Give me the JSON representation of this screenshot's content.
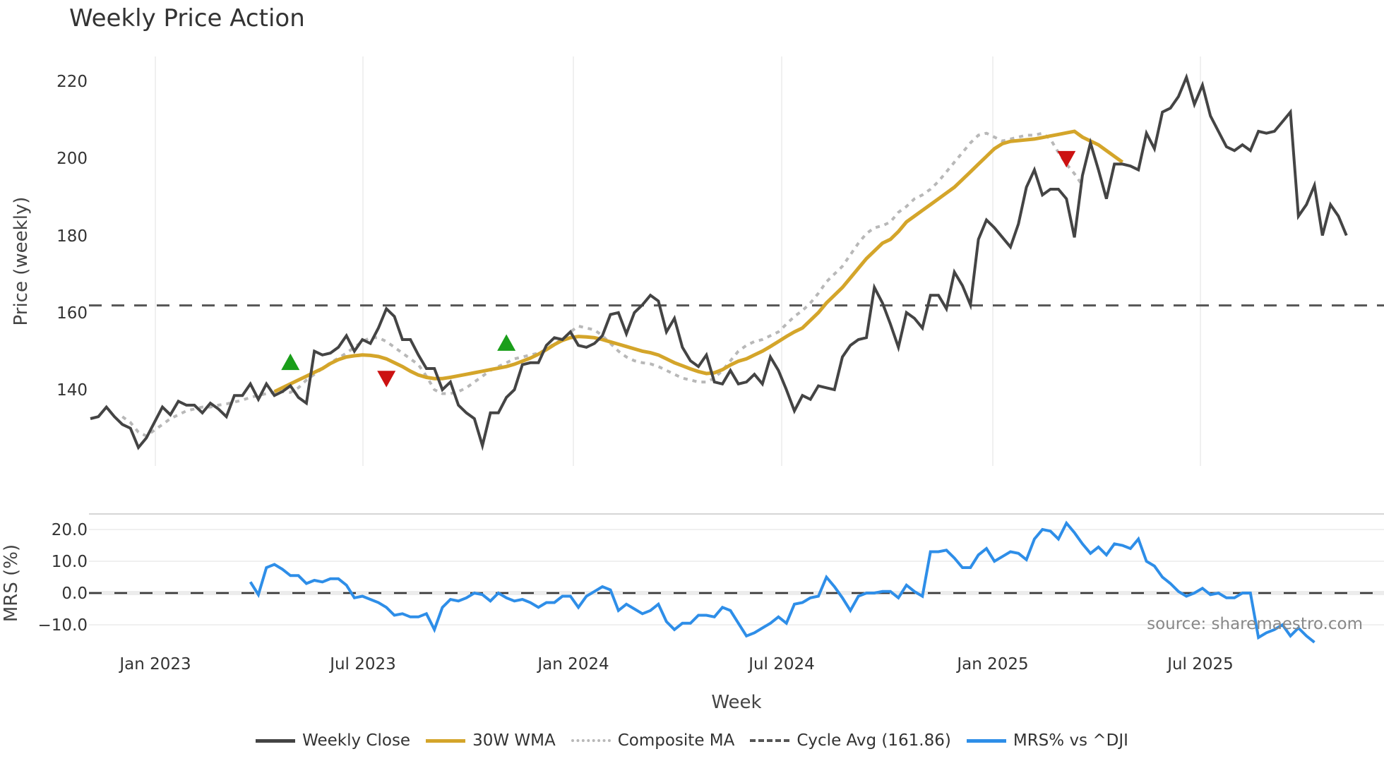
{
  "title": "Weekly Price Action",
  "source_text": "source: sharemaestro.com",
  "chart_data": [
    {
      "type": "line",
      "panel": "price",
      "title": "Weekly Price Action",
      "xlabel": "Week",
      "ylabel": "Price (weekly)",
      "yticks": [
        140,
        160,
        180,
        200,
        220
      ],
      "ylim": [
        121,
        228
      ],
      "xticks": [
        "Jan 2023",
        "Jul 2023",
        "Jan 2024",
        "Jul 2024",
        "Jan 2025",
        "Jul 2025"
      ],
      "grid": true,
      "cycle_avg": 161.86,
      "series": [
        {
          "name": "Weekly Close",
          "color": "#444444",
          "start_index": 0,
          "values": [
            132.5,
            133,
            135.5,
            133,
            131,
            130,
            125,
            127.5,
            131.5,
            135.5,
            133.5,
            137,
            136,
            136,
            134,
            136.5,
            135,
            133,
            138.5,
            138.5,
            141.5,
            137.5,
            141.5,
            138.5,
            139.5,
            141,
            138,
            136.5,
            150,
            149,
            149.5,
            151,
            154,
            150,
            153,
            152,
            156,
            161,
            159,
            153,
            153,
            149,
            145.5,
            145.5,
            140,
            142,
            136,
            134,
            132.5,
            125.5,
            134,
            134,
            138,
            140,
            146.5,
            147,
            147,
            151.5,
            153.5,
            153,
            155,
            151.5,
            151,
            152,
            154,
            159.5,
            160,
            154.5,
            160,
            162,
            164.5,
            163,
            155,
            158.5,
            151,
            147.5,
            146,
            149,
            142,
            141.5,
            145,
            141.5,
            142,
            144,
            141.5,
            148.5,
            145,
            140,
            134.5,
            138.5,
            137.5,
            141,
            140.5,
            140,
            148.5,
            151.5,
            153,
            153.5,
            166.5,
            162.5,
            157,
            151,
            160,
            158.5,
            156,
            164.5,
            164.5,
            161,
            170.5,
            167,
            162,
            179,
            184,
            182,
            179.5,
            177,
            183,
            192.5,
            197,
            190.5,
            192,
            192,
            189.5,
            179.5,
            195.5,
            204,
            197,
            189.5,
            198.5,
            198.5,
            198,
            197,
            206.5,
            202.5,
            212,
            213,
            216,
            221,
            214,
            219,
            211,
            207,
            203,
            202,
            203.5,
            202,
            207,
            206.5,
            207,
            209.5,
            212,
            185,
            188,
            193,
            180,
            188,
            185,
            180
          ]
        },
        {
          "name": "30W WMA",
          "color": "#d4a52a",
          "start_index": 23,
          "values": [
            139.5,
            140.5,
            141.5,
            142.5,
            143.5,
            144.5,
            145.5,
            146.8,
            147.8,
            148.5,
            148.8,
            149,
            148.9,
            148.6,
            148,
            147,
            146,
            144.8,
            143.8,
            143.2,
            142.9,
            142.9,
            143.2,
            143.6,
            144,
            144.4,
            144.8,
            145.2,
            145.6,
            146,
            146.6,
            147.4,
            148.2,
            149.2,
            150.4,
            151.7,
            152.8,
            153.5,
            153.8,
            153.7,
            153.5,
            153,
            152.4,
            151.8,
            151.2,
            150.6,
            150,
            149.6,
            149,
            148,
            147,
            146.2,
            145.4,
            144.7,
            144.2,
            144.4,
            145.2,
            146.4,
            147.4,
            148,
            149,
            150,
            151.2,
            152.5,
            153.8,
            155,
            156,
            158,
            160,
            162.5,
            164.5,
            166.5,
            169,
            171.5,
            174,
            176,
            178,
            179,
            181,
            183.5,
            185,
            186.5,
            188,
            189.5,
            191,
            192.5,
            194.5,
            196.5,
            198.5,
            200.5,
            202.5,
            203.8,
            204.4,
            204.6,
            204.8,
            205,
            205.4,
            205.8,
            206.2,
            206.6,
            207,
            205.5,
            204.5,
            203.5,
            202,
            200.5,
            199
          ]
        },
        {
          "name": "Composite MA",
          "color": "#b8b8b8",
          "start_index": 4,
          "values": [
            133,
            131.5,
            129,
            128,
            129.5,
            131,
            132.5,
            133.5,
            134.5,
            135,
            135.5,
            135.5,
            136,
            136.3,
            136.8,
            137.3,
            138,
            138.5,
            139,
            139.3,
            139.5,
            139.3,
            140.5,
            142.5,
            144,
            145.5,
            147,
            148.2,
            149.5,
            151,
            152.5,
            153.5,
            153.5,
            152.5,
            151,
            149.5,
            148,
            146.5,
            143.5,
            140,
            139,
            139,
            139.5,
            140.5,
            142,
            143.5,
            145,
            146,
            147,
            148,
            148.5,
            149,
            149.5,
            150.5,
            152,
            153,
            155,
            156.5,
            156,
            155.5,
            154,
            152,
            150,
            148.5,
            147.5,
            147,
            146.7,
            146,
            145,
            144,
            143,
            142.5,
            142,
            142,
            143,
            145,
            147.5,
            150,
            151.5,
            152.5,
            153,
            154,
            155,
            157,
            159,
            160.5,
            162.5,
            165,
            168,
            170,
            172,
            175,
            178,
            180.5,
            182,
            182.5,
            183.5,
            186,
            187.5,
            189.5,
            190.5,
            192,
            194,
            196.5,
            199,
            201.5,
            204,
            206,
            206.5,
            205.5,
            204.5,
            205,
            205.5,
            206,
            206,
            206.5,
            205,
            201.5,
            198.5,
            196,
            193
          ]
        }
      ],
      "markers": [
        {
          "type": "buy",
          "shape": "triangle-up",
          "color": "#1a9e1a",
          "index": 25,
          "value": 147
        },
        {
          "type": "sell",
          "shape": "triangle-down",
          "color": "#cc1111",
          "index": 37,
          "value": 143
        },
        {
          "type": "buy",
          "shape": "triangle-up",
          "color": "#1a9e1a",
          "index": 52,
          "value": 152
        },
        {
          "type": "sell",
          "shape": "triangle-down",
          "color": "#cc1111",
          "index": 122,
          "value": 200
        }
      ]
    },
    {
      "type": "line",
      "panel": "mrs",
      "ylabel": "MRS (%)",
      "yticks": [
        -10.0,
        0.0,
        10.0,
        20.0
      ],
      "ylim": [
        -19,
        25
      ],
      "zero_line": true,
      "series": [
        {
          "name": "MRS% vs ^DJI",
          "color": "#2e8ee8",
          "start_index": 20,
          "values": [
            3.5,
            -0.5,
            8,
            9,
            7.5,
            5.5,
            5.5,
            3,
            4,
            3.5,
            4.5,
            4.5,
            2.5,
            -1.5,
            -1,
            -2,
            -3,
            -4.5,
            -7,
            -6.5,
            -7.5,
            -7.5,
            -6.5,
            -11.5,
            -4.5,
            -2,
            -2.5,
            -1.5,
            0,
            -0.5,
            -2.5,
            0,
            -1.5,
            -2.5,
            -2,
            -3,
            -4.5,
            -3,
            -3,
            -1,
            -1,
            -4.5,
            -1,
            0.5,
            2,
            1,
            -5.5,
            -3.5,
            -5,
            -6.5,
            -5.5,
            -3.5,
            -9,
            -11.5,
            -9.5,
            -9.5,
            -7,
            -7,
            -7.5,
            -4.5,
            -5.5,
            -9.5,
            -13.5,
            -12.5,
            -11,
            -9.5,
            -7.5,
            -9.5,
            -3.5,
            -3,
            -1.5,
            -1,
            5,
            2,
            -1.5,
            -5.5,
            -1,
            0,
            0,
            0.5,
            0.5,
            -1.5,
            2.5,
            0.5,
            -1,
            13,
            13,
            13.5,
            11,
            8,
            8,
            12,
            14,
            10,
            11.5,
            13,
            12.5,
            10.5,
            17,
            20,
            19.5,
            17,
            22,
            19,
            15.5,
            12.5,
            14.5,
            12,
            15.5,
            15,
            14,
            17,
            10,
            8.5,
            5,
            3,
            0.5,
            -1,
            0,
            1.5,
            -0.5,
            0,
            -1.5,
            -1.5,
            0,
            0,
            -14,
            -12.5,
            -11.5,
            -10,
            -13.5,
            -11,
            -13.5,
            -15.5
          ]
        }
      ]
    }
  ],
  "axes": {
    "price_yticks": [
      "140",
      "160",
      "180",
      "200",
      "220"
    ],
    "price_ylabel": "Price (weekly)",
    "mrs_yticks": [
      "−10.0",
      "0.0",
      "10.0",
      "20.0"
    ],
    "mrs_ylabel": "MRS (%)",
    "xticks": [
      "Jan 2023",
      "Jul 2023",
      "Jan 2024",
      "Jul 2024",
      "Jan 2025",
      "Jul 2025"
    ],
    "xlabel": "Week"
  },
  "legend": [
    {
      "label": "Weekly Close",
      "color": "#444444",
      "style": "solid"
    },
    {
      "label": "30W WMA",
      "color": "#d4a52a",
      "style": "solid"
    },
    {
      "label": "Composite MA",
      "color": "#b8b8b8",
      "style": "dotted"
    },
    {
      "label": "Cycle Avg (161.86)",
      "color": "#555555",
      "style": "dashed"
    },
    {
      "label": "MRS% vs ^DJI",
      "color": "#2e8ee8",
      "style": "solid"
    }
  ]
}
